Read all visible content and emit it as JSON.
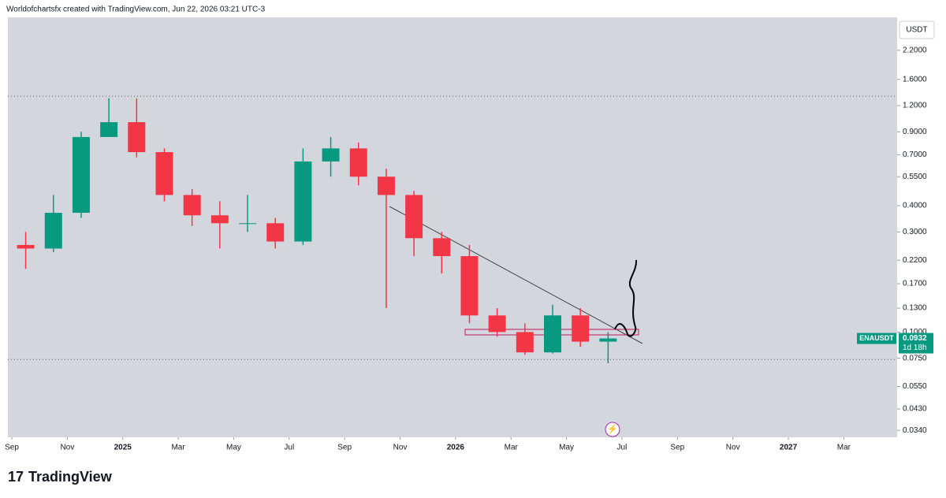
{
  "header": {
    "text": "Worldofchartsfx created with TradingView.com, Jun 22, 2026 03:21 UTC-3"
  },
  "footer": {
    "brand": "TradingView"
  },
  "chart_data": {
    "type": "candlestick",
    "currency": "USDT",
    "log_scale": true,
    "up_color": "#089981",
    "down_color": "#f23645",
    "x": [
      "2024-09",
      "2024-10",
      "2024-11",
      "2024-12",
      "2025-01",
      "2025-02",
      "2025-03",
      "2025-04",
      "2025-05",
      "2025-06",
      "2025-07",
      "2025-08",
      "2025-09",
      "2025-10",
      "2025-11",
      "2025-12",
      "2026-01",
      "2026-02",
      "2026-03",
      "2026-04",
      "2026-05",
      "2026-06"
    ],
    "open": [
      0.26,
      0.25,
      0.37,
      0.85,
      1.0,
      0.72,
      0.45,
      0.36,
      0.33,
      0.33,
      0.27,
      0.65,
      0.75,
      0.55,
      0.45,
      0.28,
      0.23,
      0.12,
      0.1,
      0.08,
      0.12,
      0.09
    ],
    "high": [
      0.3,
      0.45,
      0.9,
      1.3,
      1.3,
      0.75,
      0.48,
      0.42,
      0.45,
      0.35,
      0.75,
      0.85,
      0.8,
      0.6,
      0.47,
      0.3,
      0.26,
      0.13,
      0.11,
      0.135,
      0.13,
      0.1
    ],
    "low": [
      0.2,
      0.24,
      0.35,
      0.85,
      0.68,
      0.42,
      0.32,
      0.25,
      0.3,
      0.25,
      0.26,
      0.55,
      0.5,
      0.13,
      0.23,
      0.19,
      0.11,
      0.095,
      0.078,
      0.079,
      0.085,
      0.071
    ],
    "close": [
      0.25,
      0.37,
      0.85,
      1.0,
      0.72,
      0.45,
      0.36,
      0.33,
      0.33,
      0.27,
      0.65,
      0.75,
      0.55,
      0.45,
      0.28,
      0.23,
      0.12,
      0.1,
      0.08,
      0.12,
      0.09,
      0.0932
    ],
    "xticks": [
      {
        "value": "2024-09",
        "label": "Sep"
      },
      {
        "value": "2024-11",
        "label": "Nov"
      },
      {
        "value": "2025-01",
        "label": "2025"
      },
      {
        "value": "2025-03",
        "label": "Mar"
      },
      {
        "value": "2025-05",
        "label": "May"
      },
      {
        "value": "2025-07",
        "label": "Jul"
      },
      {
        "value": "2025-09",
        "label": "Sep"
      },
      {
        "value": "2025-11",
        "label": "Nov"
      },
      {
        "value": "2026-01",
        "label": "2026"
      },
      {
        "value": "2026-03",
        "label": "Mar"
      },
      {
        "value": "2026-05",
        "label": "May"
      },
      {
        "value": "2026-07",
        "label": "Jul"
      },
      {
        "value": "2026-09",
        "label": "Sep"
      },
      {
        "value": "2026-11",
        "label": "Nov"
      },
      {
        "value": "2027-01",
        "label": "2027"
      },
      {
        "value": "2027-03",
        "label": "Mar"
      }
    ],
    "ylim": [
      0.0315,
      3.16
    ],
    "yticks": [
      {
        "value": 2.2,
        "label": "2.2000"
      },
      {
        "value": 1.6,
        "label": "1.6000"
      },
      {
        "value": 1.2,
        "label": "1.2000"
      },
      {
        "value": 0.9,
        "label": "0.9000"
      },
      {
        "value": 0.7,
        "label": "0.7000"
      },
      {
        "value": 0.55,
        "label": "0.5500"
      },
      {
        "value": 0.4,
        "label": "0.4000"
      },
      {
        "value": 0.3,
        "label": "0.3000"
      },
      {
        "value": 0.22,
        "label": "0.2200"
      },
      {
        "value": 0.17,
        "label": "0.1700"
      },
      {
        "value": 0.13,
        "label": "0.1300"
      },
      {
        "value": 0.1,
        "label": "0.1000"
      },
      {
        "value": 0.075,
        "label": "0.0750"
      },
      {
        "value": 0.055,
        "label": "0.0550"
      },
      {
        "value": 0.043,
        "label": "0.0430"
      },
      {
        "value": 0.034,
        "label": "0.0340"
      }
    ],
    "hlines": [
      1.33,
      0.074
    ],
    "symbol": "ENAUSDT",
    "last_price": 0.0932,
    "countdown": "1d 18h"
  }
}
